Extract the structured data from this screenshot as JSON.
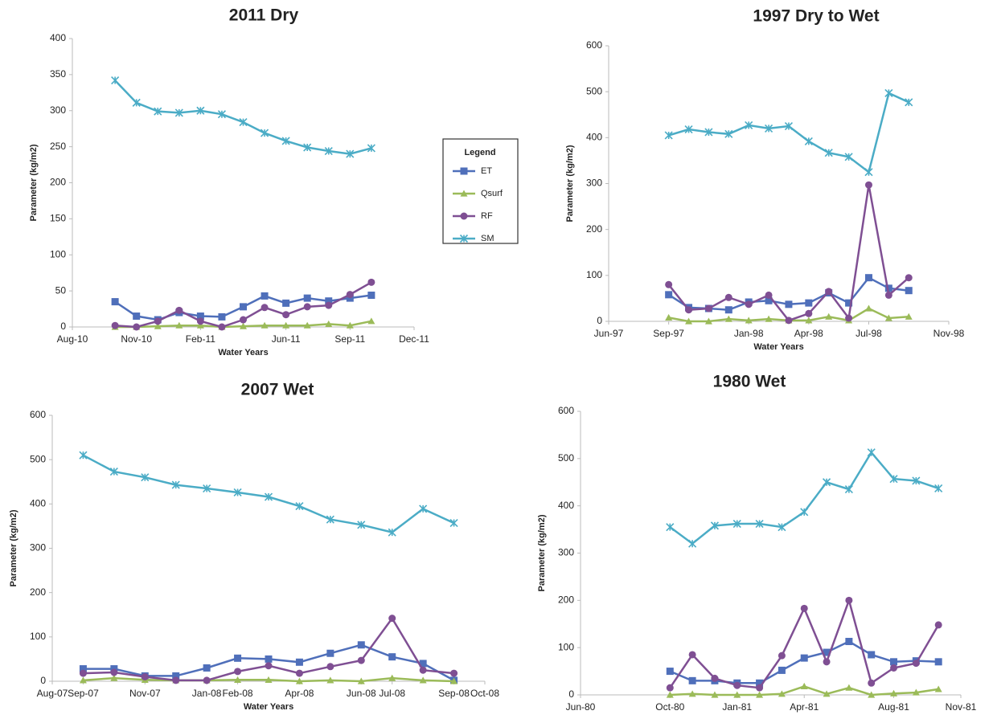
{
  "legend": {
    "title": "Legend"
  },
  "chart_data": [
    {
      "type": "line",
      "title": "2011 Dry",
      "y_label": "Parameter (kg/m2)",
      "x_label": "Water Years",
      "x": [
        "2010-10",
        "2010-11",
        "2010-12",
        "2011-01",
        "2011-02",
        "2011-03",
        "2011-04",
        "2011-05",
        "2011-06",
        "2011-07",
        "2011-08",
        "2011-09",
        "2011-10"
      ],
      "xlim": [
        "2010-08",
        "2011-12"
      ],
      "xticks": [
        {
          "value": "2010-08",
          "label": "Aug-10"
        },
        {
          "value": "2010-11",
          "label": "Nov-10"
        },
        {
          "value": "2011-02",
          "label": "Feb-11"
        },
        {
          "value": "2011-06",
          "label": "Jun-11"
        },
        {
          "value": "2011-09",
          "label": "Sep-11"
        },
        {
          "value": "2011-12",
          "label": "Dec-11"
        }
      ],
      "ylim": [
        0,
        400
      ],
      "yticks": [
        0,
        50,
        100,
        150,
        200,
        250,
        300,
        350,
        400
      ],
      "series": [
        {
          "name": "ET",
          "color": "#4f6fba",
          "marker": "square",
          "values": [
            35,
            15,
            10,
            20,
            15,
            14,
            28,
            43,
            33,
            40,
            36,
            40,
            44
          ]
        },
        {
          "name": "Qsurf",
          "color": "#9bbb59",
          "marker": "triangle",
          "values": [
            0,
            0,
            1,
            2,
            2,
            0,
            1,
            2,
            2,
            2,
            4,
            2,
            8
          ]
        },
        {
          "name": "RF",
          "color": "#7f4f93",
          "marker": "circle",
          "values": [
            2,
            0,
            8,
            23,
            8,
            0,
            10,
            27,
            17,
            28,
            30,
            45,
            62
          ]
        },
        {
          "name": "SM",
          "color": "#4bacc6",
          "marker": "star",
          "values": [
            342,
            311,
            299,
            297,
            300,
            295,
            284,
            269,
            258,
            249,
            244,
            240,
            248
          ]
        }
      ]
    },
    {
      "type": "line",
      "title": "1997 Dry  to Wet",
      "y_label": "Parameter (kg/m2)",
      "x_label": "Water Years",
      "x": [
        "1997-09",
        "1997-10",
        "1997-11",
        "1997-12",
        "1998-01",
        "1998-02",
        "1998-03",
        "1998-04",
        "1998-05",
        "1998-06",
        "1998-07",
        "1998-08",
        "1998-09"
      ],
      "xlim": [
        "1997-06",
        "1998-11"
      ],
      "xticks": [
        {
          "value": "1997-06",
          "label": "Jun-97"
        },
        {
          "value": "1997-09",
          "label": "Sep-97"
        },
        {
          "value": "1998-01",
          "label": "Jan-98"
        },
        {
          "value": "1998-04",
          "label": "Apr-98"
        },
        {
          "value": "1998-07",
          "label": "Jul-98"
        },
        {
          "value": "1998-11",
          "label": "Nov-98"
        }
      ],
      "ylim": [
        0,
        600
      ],
      "yticks": [
        0,
        100,
        200,
        300,
        400,
        500,
        600
      ],
      "series": [
        {
          "name": "ET",
          "color": "#4f6fba",
          "marker": "square",
          "values": [
            58,
            30,
            28,
            25,
            42,
            45,
            37,
            40,
            62,
            40,
            95,
            72,
            67
          ]
        },
        {
          "name": "Qsurf",
          "color": "#9bbb59",
          "marker": "triangle",
          "values": [
            8,
            0,
            0,
            5,
            2,
            5,
            2,
            2,
            10,
            2,
            28,
            7,
            10
          ]
        },
        {
          "name": "RF",
          "color": "#7f4f93",
          "marker": "circle",
          "values": [
            80,
            25,
            28,
            52,
            37,
            57,
            2,
            17,
            65,
            7,
            297,
            57,
            95
          ]
        },
        {
          "name": "SM",
          "color": "#4bacc6",
          "marker": "star",
          "values": [
            405,
            418,
            412,
            408,
            427,
            420,
            425,
            392,
            367,
            358,
            325,
            497,
            477
          ]
        }
      ]
    },
    {
      "type": "line",
      "title": "2007 Wet",
      "y_label": "Parameter (kg/m2)",
      "x_label": "Water Years",
      "x": [
        "2007-09",
        "2007-10",
        "2007-11",
        "2007-12",
        "2008-01",
        "2008-02",
        "2008-03",
        "2008-04",
        "2008-05",
        "2008-06",
        "2008-07",
        "2008-08",
        "2008-09"
      ],
      "xlim": [
        "2007-08",
        "2008-10"
      ],
      "xticks": [
        {
          "value": "2007-08",
          "label": "Aug-07"
        },
        {
          "value": "2007-09",
          "label": "Sep-07"
        },
        {
          "value": "2007-11",
          "label": "Nov-07"
        },
        {
          "value": "2008-01",
          "label": "Jan-08"
        },
        {
          "value": "2008-02",
          "label": "Feb-08"
        },
        {
          "value": "2008-04",
          "label": "Apr-08"
        },
        {
          "value": "2008-06",
          "label": "Jun-08"
        },
        {
          "value": "2008-07",
          "label": "Jul-08"
        },
        {
          "value": "2008-09",
          "label": "Sep-08"
        },
        {
          "value": "2008-10",
          "label": "Oct-08"
        }
      ],
      "ylim": [
        0,
        600
      ],
      "yticks": [
        0,
        100,
        200,
        300,
        400,
        500,
        600
      ],
      "series": [
        {
          "name": "ET",
          "color": "#4f6fba",
          "marker": "square",
          "values": [
            28,
            28,
            12,
            12,
            30,
            52,
            50,
            43,
            63,
            82,
            55,
            40,
            2
          ]
        },
        {
          "name": "Qsurf",
          "color": "#9bbb59",
          "marker": "triangle",
          "values": [
            2,
            7,
            3,
            2,
            2,
            3,
            3,
            0,
            2,
            0,
            7,
            2,
            0
          ]
        },
        {
          "name": "RF",
          "color": "#7f4f93",
          "marker": "circle",
          "values": [
            18,
            20,
            10,
            2,
            2,
            22,
            35,
            18,
            33,
            47,
            142,
            25,
            18
          ]
        },
        {
          "name": "SM",
          "color": "#4bacc6",
          "marker": "star",
          "values": [
            510,
            473,
            460,
            443,
            435,
            426,
            416,
            395,
            365,
            353,
            336,
            389,
            357
          ]
        }
      ]
    },
    {
      "type": "line",
      "title": "1980 Wet",
      "y_label": "Parameter (kg/m2)",
      "x": [
        "1980-10",
        "1980-11",
        "1980-12",
        "1981-01",
        "1981-02",
        "1981-03",
        "1981-04",
        "1981-05",
        "1981-06",
        "1981-07",
        "1981-08",
        "1981-09",
        "1981-10"
      ],
      "xlim": [
        "1980-06",
        "1981-11"
      ],
      "xticks": [
        {
          "value": "1980-06",
          "label": "Jun-80"
        },
        {
          "value": "1980-10",
          "label": "Oct-80"
        },
        {
          "value": "1981-01",
          "label": "Jan-81"
        },
        {
          "value": "1981-04",
          "label": "Apr-81"
        },
        {
          "value": "1981-08",
          "label": "Aug-81"
        },
        {
          "value": "1981-11",
          "label": "Nov-81"
        }
      ],
      "ylim": [
        0,
        600
      ],
      "yticks": [
        0,
        100,
        200,
        300,
        400,
        500,
        600
      ],
      "series": [
        {
          "name": "ET",
          "color": "#4f6fba",
          "marker": "square",
          "values": [
            50,
            30,
            30,
            25,
            25,
            52,
            78,
            90,
            113,
            85,
            70,
            72,
            70
          ]
        },
        {
          "name": "Qsurf",
          "color": "#9bbb59",
          "marker": "triangle",
          "values": [
            0,
            2,
            0,
            0,
            0,
            2,
            18,
            2,
            15,
            0,
            3,
            5,
            12
          ]
        },
        {
          "name": "RF",
          "color": "#7f4f93",
          "marker": "circle",
          "values": [
            15,
            85,
            35,
            20,
            15,
            83,
            183,
            70,
            200,
            25,
            57,
            67,
            148
          ]
        },
        {
          "name": "SM",
          "color": "#4bacc6",
          "marker": "star",
          "values": [
            355,
            320,
            358,
            362,
            362,
            355,
            387,
            450,
            435,
            513,
            457,
            453,
            437
          ]
        }
      ]
    }
  ]
}
